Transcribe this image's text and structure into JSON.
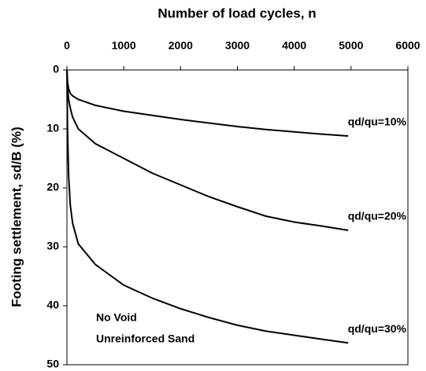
{
  "chart_data": {
    "type": "line",
    "x_label": "Number of load cycles, n",
    "y_label": "Footing settlement, sd/B (%)",
    "x": [
      0,
      10,
      30,
      60,
      100,
      200,
      500,
      1000,
      1500,
      2000,
      2500,
      3000,
      3500,
      4000,
      4500,
      4950
    ],
    "series": [
      {
        "name": "qd/qu=10%",
        "color": "#000000",
        "values": [
          0,
          2,
          3.2,
          4,
          4.4,
          5,
          6,
          7,
          7.7,
          8.4,
          9,
          9.6,
          10.1,
          10.5,
          10.9,
          11.2
        ]
      },
      {
        "name": "qd/qu=20%",
        "color": "#000000",
        "values": [
          0,
          3,
          5,
          6.5,
          8,
          10,
          12.5,
          15,
          17.5,
          19.5,
          21.5,
          23.2,
          24.8,
          25.8,
          26.5,
          27.2
        ]
      },
      {
        "name": "qd/qu=30%",
        "color": "#000000",
        "values": [
          0,
          10,
          18,
          23,
          26,
          29.5,
          33,
          36.5,
          38.7,
          40.5,
          42,
          43.3,
          44.3,
          45,
          45.7,
          46.3
        ]
      }
    ],
    "annotations": [
      "No Void",
      "Unreinforced Sand"
    ],
    "xlim": [
      0,
      6000
    ],
    "xticks": [
      0,
      1000,
      2000,
      3000,
      4000,
      5000,
      6000
    ],
    "ylim": [
      0,
      50
    ],
    "yticks": [
      0,
      10,
      20,
      30,
      40,
      50
    ],
    "y_inverted": true,
    "x_axis_position": "top",
    "grid": false
  }
}
